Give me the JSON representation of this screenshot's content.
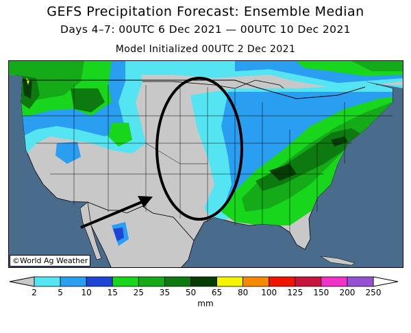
{
  "header": {
    "title": "GEFS Precipitation Forecast: Ensemble Median",
    "subtitle": "Days 4–7: 00UTC 6 Dec 2021 — 00UTC 10 Dec 2021",
    "initialized": "Model Initialized 00UTC 2 Dec 2021"
  },
  "map": {
    "credit": "©World Ag Weather",
    "colors": {
      "ocean": "#4a6c8c",
      "land_dry": "#c8c8c8",
      "border": "#000000"
    },
    "annotations": [
      "ellipse-highlight-central-plains",
      "arrow-pointing-southwest"
    ]
  },
  "legend": {
    "units": "mm",
    "ticks": [
      "2",
      "5",
      "10",
      "15",
      "25",
      "35",
      "50",
      "65",
      "80",
      "100",
      "125",
      "150",
      "200",
      "250"
    ],
    "colors": [
      "#55e5f2",
      "#2a9ef0",
      "#1f45d6",
      "#17d61b",
      "#14aa18",
      "#0d7a0f",
      "#053d05",
      "#f5f500",
      "#f58a00",
      "#f01500",
      "#c8143c",
      "#f032c8",
      "#9650d2"
    ],
    "under_color": "#c8c8c8",
    "over_color": "#ffffff"
  }
}
